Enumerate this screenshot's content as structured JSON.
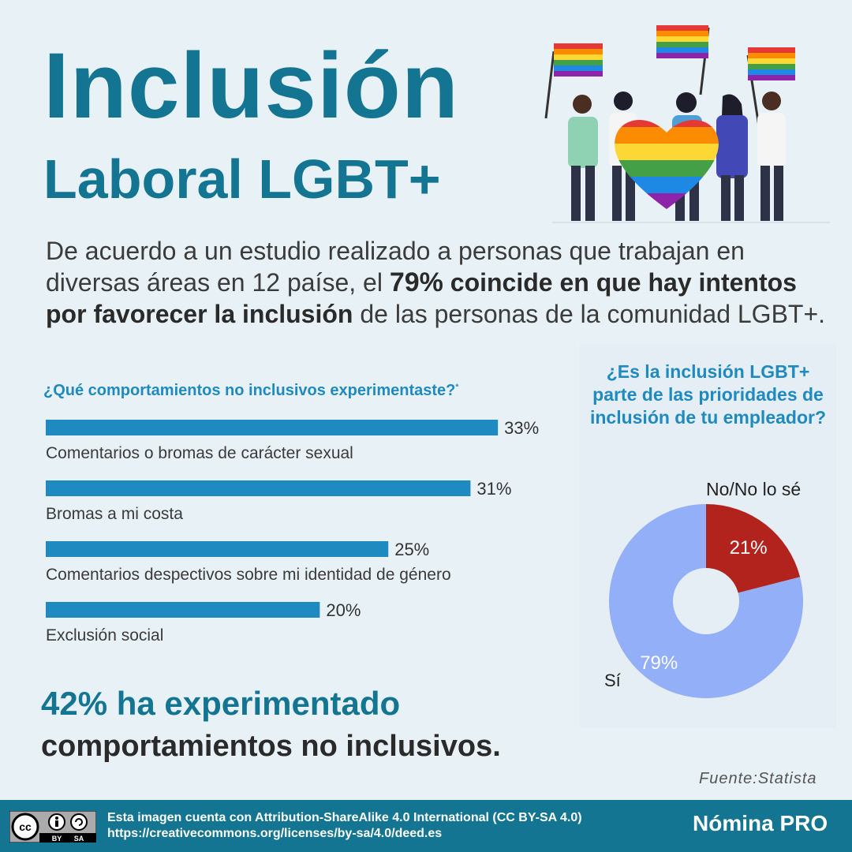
{
  "header": {
    "title_line1": "Inclusión",
    "title_line2": "Laboral LGBT+"
  },
  "intro": {
    "part1": "De acuerdo a un estudio realizado a personas que trabajan en diversas áreas en 12 paíse, el ",
    "bold1": "79%",
    "bold2": "  coincide en que hay intentos por favorecer la inclusión",
    "part2": " de las personas de la comunidad LGBT+."
  },
  "bar_question": {
    "text": "¿Qué comportamientos no inclusivos experimentaste?",
    "mark": "*"
  },
  "pie_question": "¿Es la inclusión LGBT+ parte de las prioridades de inclusión de tu empleador?",
  "colors": {
    "teal": "#137591",
    "bar": "#1f8ac0",
    "pie_yes": "#92aff7",
    "pie_no": "#b3231e"
  },
  "chart_data": [
    {
      "type": "bar",
      "orientation": "horizontal",
      "title": "¿Qué comportamientos no inclusivos experimentaste?",
      "categories": [
        "Comentarios o bromas de carácter sexual",
        "Bromas a mi costa",
        "Comentarios despectivos sobre mi identidad de género",
        "Exclusión social"
      ],
      "values": [
        33,
        31,
        25,
        20
      ],
      "value_labels": [
        "33%",
        "31%",
        "25%",
        "20%"
      ],
      "xlim": [
        0,
        38
      ],
      "grid": false
    },
    {
      "type": "pie",
      "title": "¿Es la inclusión LGBT+ parte de las prioridades de inclusión de tu empleador?",
      "donut": true,
      "slices": [
        {
          "label": "No/No lo sé",
          "value": 21,
          "value_label": "21%"
        },
        {
          "label": "Sí",
          "value": 79,
          "value_label": "79%"
        }
      ]
    }
  ],
  "stat": {
    "line1": "42% ha experimentado",
    "line2": "comportamientos no inclusivos."
  },
  "source": "Fuente:Statista",
  "footer": {
    "cc_badge": {
      "cc": "cc",
      "by": "BY",
      "sa": "SA"
    },
    "license_line1": "Esta imagen cuenta con Attribution-ShareAlike 4.0 International (CC BY-SA 4.0)",
    "license_line2": "https://creativecommons.org/licenses/by-sa/4.0/deed.es",
    "brand": "Nómina PRO"
  }
}
